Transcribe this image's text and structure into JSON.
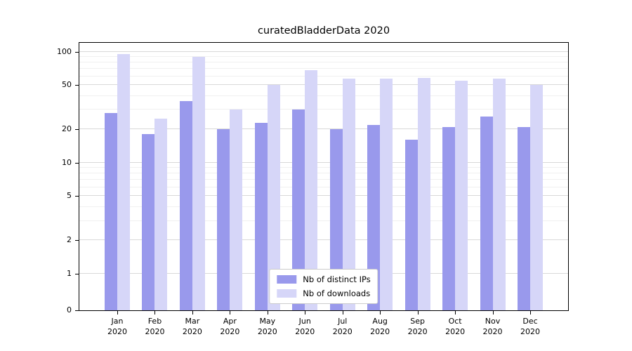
{
  "chart_data": {
    "type": "bar",
    "title": "curatedBladderData 2020",
    "categories": [
      "Jan 2020",
      "Feb 2020",
      "Mar 2020",
      "Apr 2020",
      "May 2020",
      "Jun 2020",
      "Jul 2020",
      "Aug 2020",
      "Sep 2020",
      "Oct 2020",
      "Nov 2020",
      "Dec 2020"
    ],
    "series": [
      {
        "name": "Nb of distinct IPs",
        "color": "#9999ec",
        "values": [
          28,
          18,
          36,
          20,
          23,
          30,
          20,
          22,
          16,
          21,
          26,
          21
        ]
      },
      {
        "name": "Nb of downloads",
        "color": "#d6d6f8",
        "values": [
          95,
          25,
          90,
          30,
          50,
          68,
          57,
          57,
          58,
          55,
          57,
          50
        ]
      }
    ],
    "yscale": "symlog",
    "y_ticks": [
      0,
      1,
      2,
      5,
      10,
      20,
      50,
      100
    ],
    "y_minor_ticks": [
      3,
      4,
      6,
      7,
      8,
      9,
      30,
      40,
      60,
      70,
      80,
      90
    ],
    "ylim": [
      0,
      120
    ],
    "xlabel": "",
    "ylabel": "",
    "grid": true,
    "legend_position": "lower center"
  }
}
